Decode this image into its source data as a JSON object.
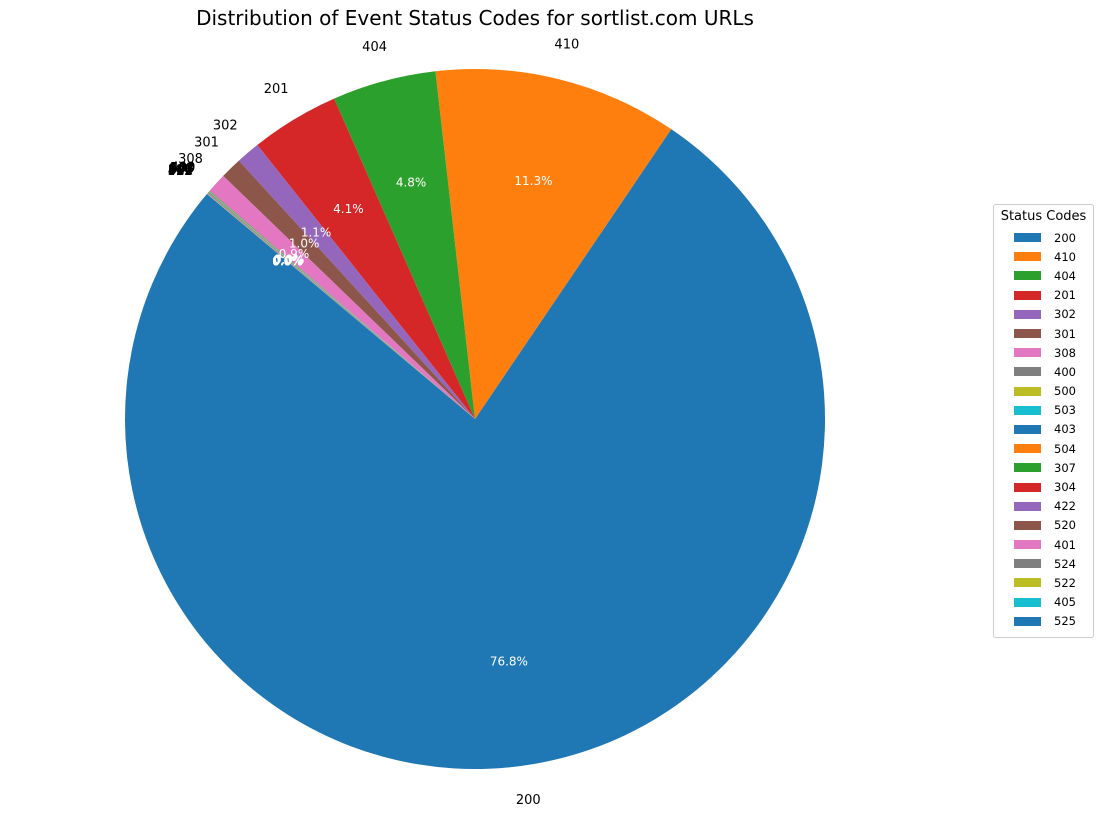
{
  "chart_data": {
    "type": "pie",
    "title": "Distribution of Event Status Codes for sortlist.com URLs",
    "legend_title": "Status Codes",
    "legend_placement": "right",
    "start_angle_deg": 140,
    "direction": "counterclockwise",
    "slices": [
      {
        "label": "200",
        "value": 76.8,
        "pct_label": "76.8%",
        "color": "#1f77b4"
      },
      {
        "label": "410",
        "value": 11.3,
        "pct_label": "11.3%",
        "color": "#ff7f0e"
      },
      {
        "label": "404",
        "value": 4.8,
        "pct_label": "4.8%",
        "color": "#2ca02c"
      },
      {
        "label": "201",
        "value": 4.1,
        "pct_label": "4.1%",
        "color": "#d62728"
      },
      {
        "label": "302",
        "value": 1.1,
        "pct_label": "1.1%",
        "color": "#9467bd"
      },
      {
        "label": "301",
        "value": 1.0,
        "pct_label": "1.0%",
        "color": "#8c564b"
      },
      {
        "label": "308",
        "value": 0.9,
        "pct_label": "0.9%",
        "color": "#e377c2"
      },
      {
        "label": "400",
        "value": 0.04,
        "pct_label": "0.0%",
        "color": "#7f7f7f"
      },
      {
        "label": "500",
        "value": 0.03,
        "pct_label": "0.0%",
        "color": "#bcbd22"
      },
      {
        "label": "503",
        "value": 0.03,
        "pct_label": "0.0%",
        "color": "#17becf"
      },
      {
        "label": "403",
        "value": 0.02,
        "pct_label": "0.0%",
        "color": "#1f77b4"
      },
      {
        "label": "504",
        "value": 0.02,
        "pct_label": "0.0%",
        "color": "#ff7f0e"
      },
      {
        "label": "307",
        "value": 0.01,
        "pct_label": "0.0%",
        "color": "#2ca02c"
      },
      {
        "label": "304",
        "value": 0.01,
        "pct_label": "0.0%",
        "color": "#d62728"
      },
      {
        "label": "422",
        "value": 0.01,
        "pct_label": "0.0%",
        "color": "#9467bd"
      },
      {
        "label": "520",
        "value": 0.01,
        "pct_label": "0.0%",
        "color": "#8c564b"
      },
      {
        "label": "401",
        "value": 0.01,
        "pct_label": "0.0%",
        "color": "#e377c2"
      },
      {
        "label": "524",
        "value": 0.005,
        "pct_label": "0.0%",
        "color": "#7f7f7f"
      },
      {
        "label": "522",
        "value": 0.005,
        "pct_label": "0.0%",
        "color": "#bcbd22"
      },
      {
        "label": "405",
        "value": 0.005,
        "pct_label": "0.0%",
        "color": "#17becf"
      },
      {
        "label": "525",
        "value": 0.005,
        "pct_label": "0.0%",
        "color": "#1f77b4"
      }
    ]
  }
}
